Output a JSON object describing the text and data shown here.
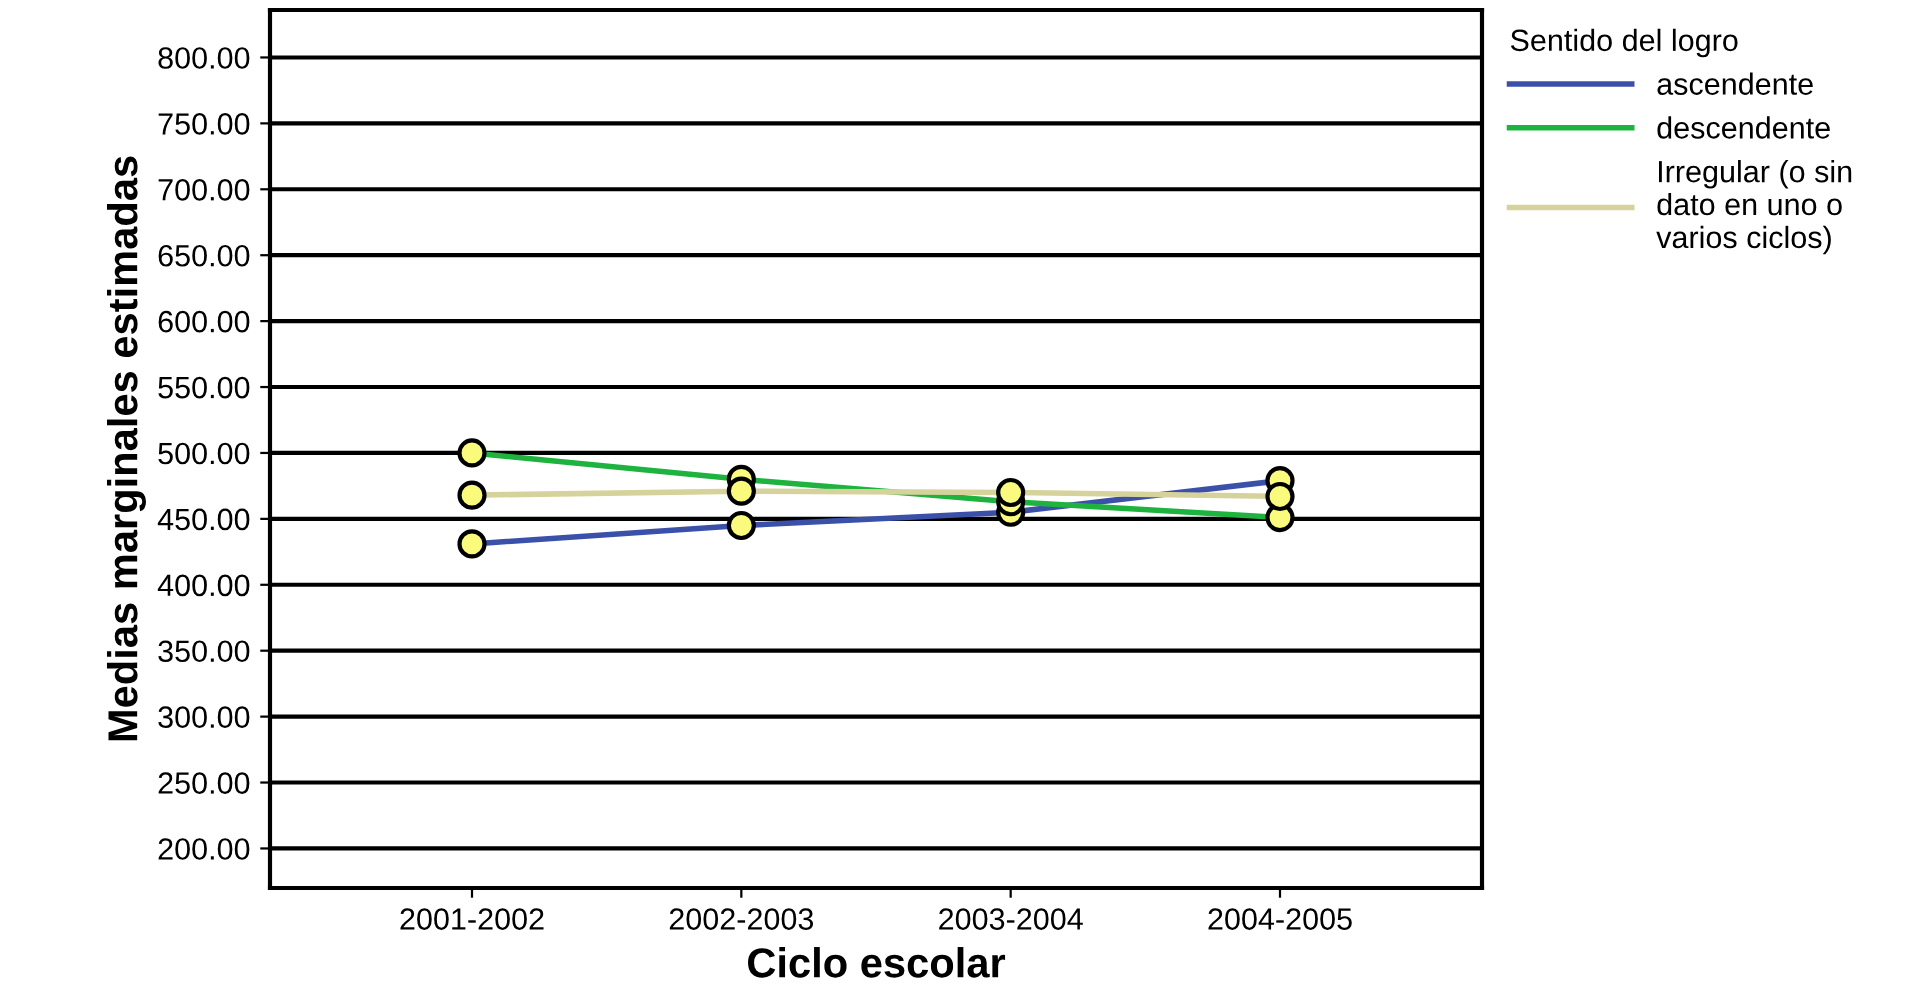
{
  "chart_data": {
    "type": "line",
    "xlabel": "Ciclo escolar",
    "ylabel": "Medias marginales estimadas",
    "legend_title": "Sentido del logro",
    "categories": [
      "2001-2002",
      "2002-2003",
      "2003-2004",
      "2004-2005"
    ],
    "series": [
      {
        "name": "ascendente",
        "color": "#3b50a8",
        "values": [
          431,
          445,
          455,
          479
        ]
      },
      {
        "name": "descendente",
        "color": "#1db33e",
        "values": [
          500,
          480,
          463,
          451
        ]
      },
      {
        "name": "Irregular (o sin\ndato en uno o\nvarios ciclos)",
        "color": "#d6d29c",
        "values": [
          468,
          471,
          470,
          467
        ]
      }
    ],
    "ylim": [
      170,
      836
    ],
    "yticks": [
      {
        "value": 200,
        "label": "200.00"
      },
      {
        "value": 250,
        "label": "250.00"
      },
      {
        "value": 300,
        "label": "300.00"
      },
      {
        "value": 350,
        "label": "350.00"
      },
      {
        "value": 400,
        "label": "400.00"
      },
      {
        "value": 450,
        "label": "450.00"
      },
      {
        "value": 500,
        "label": "500.00"
      },
      {
        "value": 550,
        "label": "550.00"
      },
      {
        "value": 600,
        "label": "600.00"
      },
      {
        "value": 650,
        "label": "650.00"
      },
      {
        "value": 700,
        "label": "700.00"
      },
      {
        "value": 750,
        "label": "750.00"
      },
      {
        "value": 800,
        "label": "800.00"
      }
    ],
    "grid": "y",
    "legend": "top right",
    "marker": "circle",
    "line_style": "solid"
  }
}
